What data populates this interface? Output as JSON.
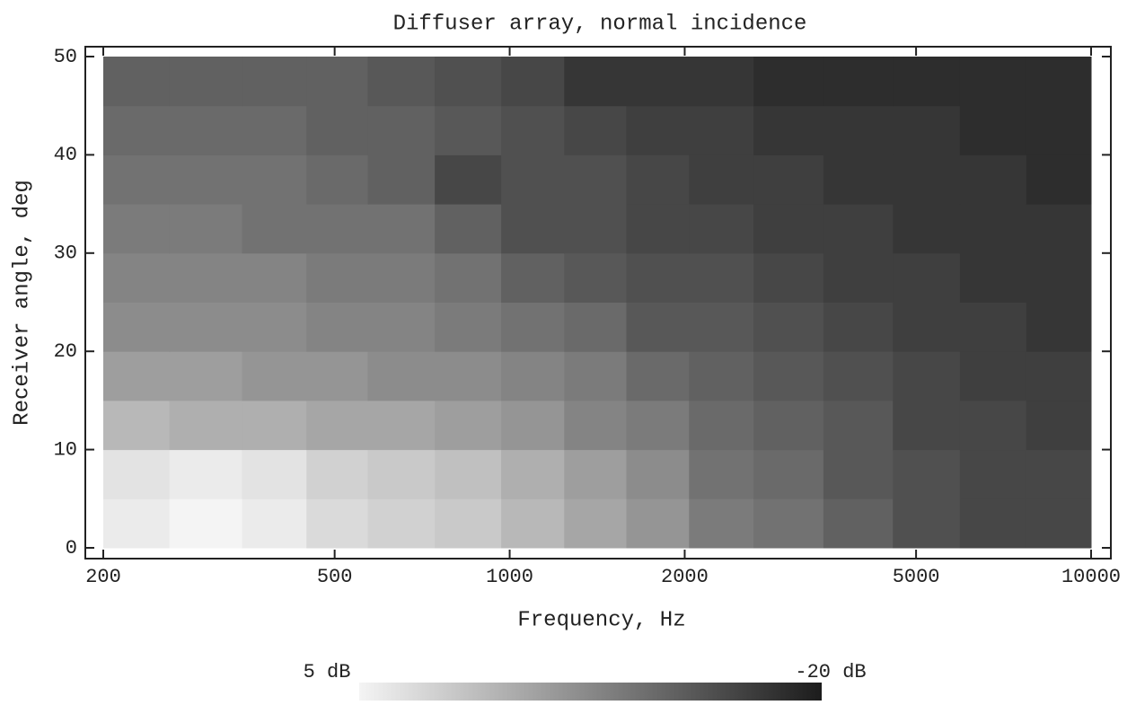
{
  "chart_data": {
    "type": "heatmap",
    "title": "Diffuser array, normal incidence",
    "x_label": "Frequency, Hz",
    "y_label": "Receiver angle, deg",
    "x_scale": "log",
    "xlim": [
      200,
      10000
    ],
    "xticks": [
      200,
      500,
      1000,
      2000,
      5000,
      10000
    ],
    "ylim": [
      0,
      50
    ],
    "yticks": [
      0,
      10,
      20,
      30,
      40,
      50
    ],
    "x": [
      225,
      300,
      400,
      500,
      650,
      850,
      1100,
      1400,
      1800,
      2300,
      3000,
      4000,
      5200,
      6800,
      8800
    ],
    "y": [
      2.5,
      7.5,
      12.5,
      17.5,
      22.5,
      27.5,
      32.5,
      37.5,
      42.5,
      47.5
    ],
    "z": [
      [
        4,
        5,
        4,
        2,
        1,
        0,
        -2,
        -4,
        -6,
        -9,
        -10,
        -12,
        -14,
        -15,
        -15
      ],
      [
        3,
        4,
        3,
        1,
        0,
        -1,
        -3,
        -5,
        -7,
        -10,
        -11,
        -13,
        -14,
        -15,
        -15
      ],
      [
        -2,
        -3,
        -3,
        -4,
        -4,
        -5,
        -6,
        -8,
        -9,
        -11,
        -12,
        -13,
        -15,
        -15,
        -16
      ],
      [
        -5,
        -5,
        -6,
        -6,
        -7,
        -7,
        -8,
        -9,
        -11,
        -12,
        -13,
        -14,
        -15,
        -16,
        -16
      ],
      [
        -7,
        -7,
        -7,
        -8,
        -8,
        -9,
        -10,
        -11,
        -13,
        -13,
        -14,
        -15,
        -16,
        -16,
        -17
      ],
      [
        -8,
        -8,
        -8,
        -9,
        -9,
        -10,
        -12,
        -13,
        -14,
        -14,
        -15,
        -16,
        -16,
        -17,
        -17
      ],
      [
        -9,
        -9,
        -10,
        -10,
        -10,
        -12,
        -14,
        -14,
        -15,
        -15,
        -16,
        -16,
        -17,
        -17,
        -17
      ],
      [
        -10,
        -10,
        -10,
        -11,
        -12,
        -15,
        -14,
        -14,
        -15,
        -16,
        -16,
        -17,
        -17,
        -17,
        -18
      ],
      [
        -11,
        -11,
        -11,
        -12,
        -12,
        -13,
        -14,
        -15,
        -16,
        -16,
        -17,
        -17,
        -17,
        -18,
        -18
      ],
      [
        -12,
        -12,
        -12,
        -12,
        -13,
        -14,
        -15,
        -17,
        -17,
        -17,
        -18,
        -18,
        -18,
        -18,
        -18
      ]
    ],
    "colorscale": [
      "#f4f4f4",
      "#1c1c1c"
    ],
    "clim": [
      5,
      -20
    ],
    "colorbar_ticks": [
      {
        "value": 5,
        "label": "5 dB"
      },
      {
        "value": -20,
        "label": "-20 dB"
      }
    ]
  }
}
